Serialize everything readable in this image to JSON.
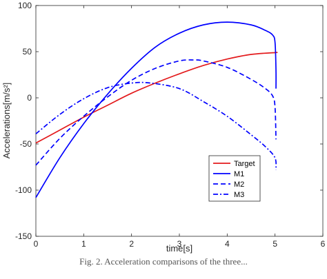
{
  "chart_data": {
    "type": "line",
    "title": "",
    "xlabel": "time[s]",
    "ylabel": "Accelerations[m/s²]",
    "xlim": [
      0,
      6
    ],
    "ylim": [
      -150,
      100
    ],
    "xticks": [
      0,
      1,
      2,
      3,
      4,
      5,
      6
    ],
    "yticks": [
      -150,
      -100,
      -50,
      0,
      50,
      100
    ],
    "grid": false,
    "legend_position": "bottom-right",
    "series": [
      {
        "name": "Target",
        "color": "#e31a1c",
        "style": "solid",
        "x": [
          0,
          0.5,
          1,
          1.5,
          2,
          2.5,
          3,
          3.5,
          4,
          4.5,
          5,
          5.02
        ],
        "y": [
          -49,
          -35,
          -21,
          -8,
          5,
          16,
          26,
          35,
          42,
          47,
          49,
          49
        ]
      },
      {
        "name": "M1",
        "color": "#0000ff",
        "style": "solid",
        "x": [
          0,
          0.5,
          1,
          1.5,
          2,
          2.5,
          3,
          3.5,
          4,
          4.5,
          4.8,
          4.95,
          5.0,
          5.02,
          5.02
        ],
        "y": [
          -108,
          -65,
          -28,
          4,
          32,
          55,
          70,
          79,
          82,
          79,
          73,
          68,
          60,
          30,
          10
        ]
      },
      {
        "name": "M2",
        "color": "#0000ff",
        "style": "dashed",
        "x": [
          0,
          0.5,
          1,
          1.5,
          2,
          2.5,
          3,
          3.3,
          3.5,
          4,
          4.5,
          4.8,
          4.95,
          5.0,
          5.02
        ],
        "y": [
          -73,
          -44,
          -20,
          1,
          19,
          32,
          40,
          41,
          40,
          33,
          20,
          10,
          2,
          -10,
          -45
        ]
      },
      {
        "name": "M3",
        "color": "#0000ff",
        "style": "dashdot",
        "x": [
          0,
          0.5,
          1,
          1.5,
          2,
          2.4,
          3,
          3.5,
          4,
          4.5,
          4.8,
          5.0,
          5.02
        ],
        "y": [
          -39,
          -18,
          -1,
          11,
          16,
          16,
          10,
          -4,
          -20,
          -40,
          -53,
          -65,
          -78
        ]
      }
    ]
  },
  "caption": "Fig. 2. Acceleration comparisons of the three..."
}
